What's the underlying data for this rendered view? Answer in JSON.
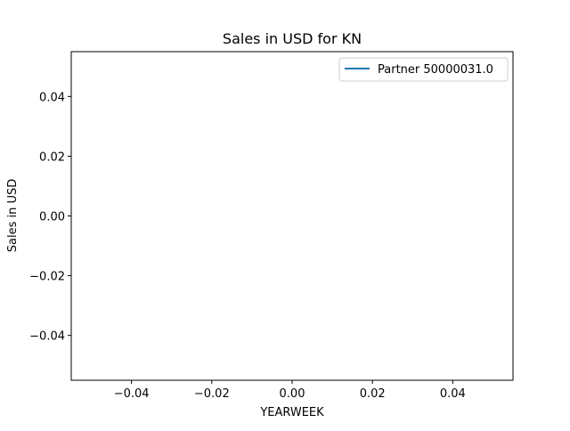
{
  "chart_data": {
    "type": "line",
    "title": "Sales in USD for KN",
    "xlabel": "YEARWEEK",
    "ylabel": "Sales in USD",
    "xlim": [
      -0.055,
      0.055
    ],
    "ylim": [
      -0.055,
      0.055
    ],
    "x_ticks": [
      -0.04,
      -0.02,
      0.0,
      0.02,
      0.04
    ],
    "x_tick_labels": [
      "−0.04",
      "−0.02",
      "0.00",
      "0.02",
      "0.04"
    ],
    "y_ticks": [
      0.04,
      0.02,
      0.0,
      -0.02,
      -0.04
    ],
    "y_tick_labels": [
      "0.04",
      "0.02",
      "0.00",
      "−0.02",
      "−0.04"
    ],
    "grid": false,
    "legend_position": "top-right",
    "series": [
      {
        "name": "Partner 50000031.0",
        "color": "#1f77b4",
        "x": [],
        "y": []
      }
    ]
  }
}
